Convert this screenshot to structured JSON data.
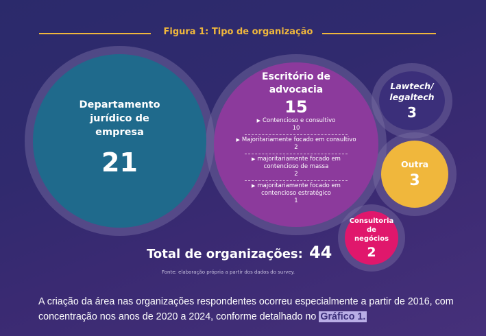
{
  "title": "Figura 1: Tipo de organização",
  "bubbles": {
    "dept": {
      "label": "Departamento jurídico de empresa",
      "value": "21"
    },
    "escritorio": {
      "label": "Escritório de advocacia",
      "value": "15",
      "items": [
        {
          "label": "Contencioso e consultivo",
          "value": "10"
        },
        {
          "label": "Majoritariamente focado em consultivo",
          "value": "2"
        },
        {
          "label": "majoritariamente focado em contencioso de massa",
          "value": "2"
        },
        {
          "label": "majoritariamente focado em contencioso estratégico",
          "value": "1"
        }
      ]
    },
    "lawtech": {
      "label": "Lawtech/ legaltech",
      "value": "3"
    },
    "outra": {
      "label": "Outra",
      "value": "3"
    },
    "consultoria": {
      "label": "Consultoria de negócios",
      "value": "2"
    }
  },
  "total": {
    "label": "Total de organizações:",
    "value": "44"
  },
  "fonte": "Fonte: elaboração própria a partir dos dados do survey.",
  "paragraph": {
    "text": "A criação da área nas organizações respondentes ocorreu especialmente a partir de 2016, com concentração nos anos de 2020 a 2024, conforme detalhado no",
    "link": "Gráfico 1."
  },
  "colors": {
    "background": "#302a6e",
    "accent": "#f0b73c",
    "dept": "#1f6a8c",
    "escritorio": "#8c3a9c",
    "lawtech": "#3b2f7a",
    "outra": "#f0b73c",
    "consultoria": "#e0176c"
  }
}
